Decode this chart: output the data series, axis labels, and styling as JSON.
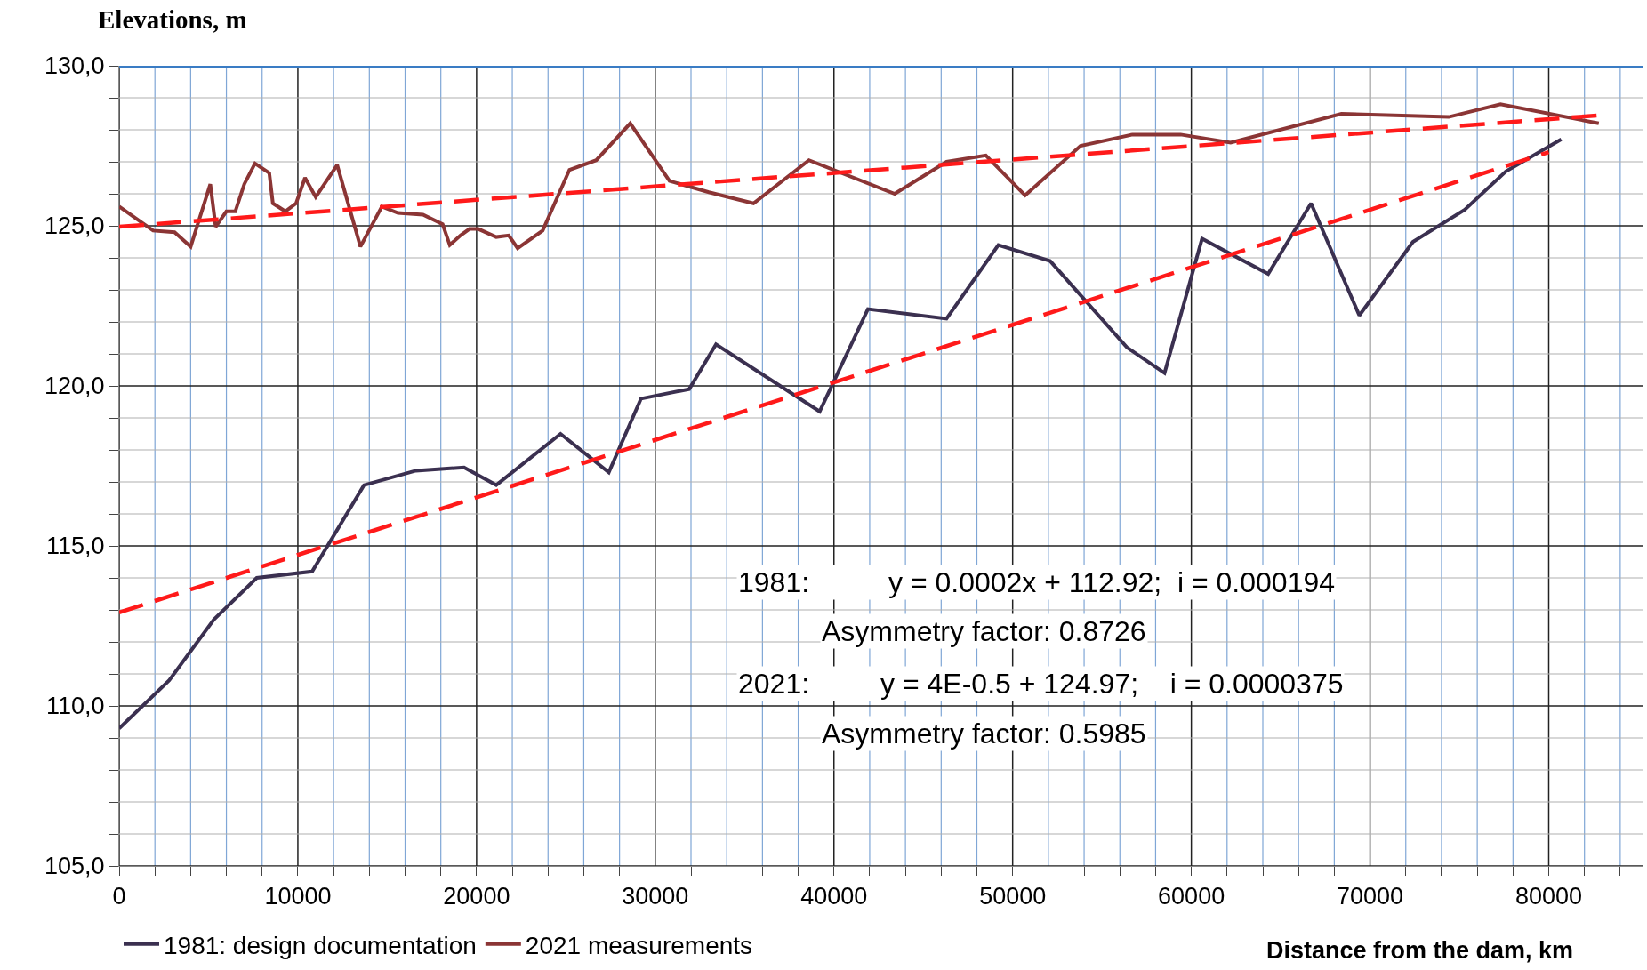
{
  "chart_data": {
    "type": "line",
    "ylabel": "Elevations, m",
    "xlabel": "Distance from the dam, km",
    "xlim": [
      0,
      85300
    ],
    "xticks": [
      0,
      {
        "value": 2000,
        "label": null
      },
      {
        "value": 4000,
        "label": null
      },
      {
        "value": 6000,
        "label": null
      },
      {
        "value": 8000,
        "label": null
      },
      10000,
      {
        "value": 12000,
        "label": null
      },
      {
        "value": 14000,
        "label": null
      },
      {
        "value": 16000,
        "label": null
      },
      {
        "value": 18000,
        "label": null
      },
      20000,
      {
        "value": 22000,
        "label": null
      },
      {
        "value": 24000,
        "label": null
      },
      {
        "value": 26000,
        "label": null
      },
      {
        "value": 28000,
        "label": null
      },
      30000,
      {
        "value": 32000,
        "label": null
      },
      {
        "value": 34000,
        "label": null
      },
      {
        "value": 36000,
        "label": null
      },
      {
        "value": 38000,
        "label": null
      },
      40000,
      {
        "value": 42000,
        "label": null
      },
      {
        "value": 44000,
        "label": null
      },
      {
        "value": 46000,
        "label": null
      },
      {
        "value": 48000,
        "label": null
      },
      50000,
      {
        "value": 52000,
        "label": null
      },
      {
        "value": 54000,
        "label": null
      },
      {
        "value": 56000,
        "label": null
      },
      {
        "value": 58000,
        "label": null
      },
      60000,
      {
        "value": 62000,
        "label": null
      },
      {
        "value": 64000,
        "label": null
      },
      {
        "value": 66000,
        "label": null
      },
      {
        "value": 68000,
        "label": null
      },
      70000,
      {
        "value": 72000,
        "label": null
      },
      {
        "value": 74000,
        "label": null
      },
      {
        "value": 76000,
        "label": null
      },
      {
        "value": 78000,
        "label": null
      },
      80000,
      {
        "value": 82000,
        "label": null
      },
      {
        "value": 84000,
        "label": null
      }
    ],
    "ylim": [
      105,
      130
    ],
    "yticks": [
      {
        "value": 105,
        "label": "105,0"
      },
      {
        "value": 106,
        "label": null
      },
      {
        "value": 107,
        "label": null
      },
      {
        "value": 108,
        "label": null
      },
      {
        "value": 109,
        "label": null
      },
      {
        "value": 110,
        "label": "110,0"
      },
      {
        "value": 111,
        "label": null
      },
      {
        "value": 112,
        "label": null
      },
      {
        "value": 113,
        "label": null
      },
      {
        "value": 114,
        "label": null
      },
      {
        "value": 115,
        "label": "115,0"
      },
      {
        "value": 116,
        "label": null
      },
      {
        "value": 117,
        "label": null
      },
      {
        "value": 118,
        "label": null
      },
      {
        "value": 119,
        "label": null
      },
      {
        "value": 120,
        "label": "120,0"
      },
      {
        "value": 121,
        "label": null
      },
      {
        "value": 122,
        "label": null
      },
      {
        "value": 123,
        "label": null
      },
      {
        "value": 124,
        "label": null
      },
      {
        "value": 125,
        "label": "125,0"
      },
      {
        "value": 126,
        "label": null
      },
      {
        "value": 127,
        "label": null
      },
      {
        "value": 128,
        "label": null
      },
      {
        "value": 129,
        "label": null
      },
      {
        "value": 130,
        "label": "130,0"
      }
    ],
    "grid": true,
    "legend": "bottom left",
    "marker": "none",
    "series": [
      {
        "name": "1981: design documentation",
        "color": "#3b3050",
        "x": [
          0,
          2800,
          5300,
          7700,
          10800,
          13700,
          16600,
          19300,
          21100,
          24700,
          27400,
          29200,
          31900,
          33400,
          39200,
          41900,
          46300,
          49200,
          52100,
          56400,
          58500,
          60600,
          64300,
          66700,
          69400,
          72400,
          75300,
          77600,
          80700
        ],
        "values": [
          109.3,
          110.8,
          112.7,
          114.0,
          114.2,
          116.9,
          117.35,
          117.45,
          116.9,
          118.5,
          117.3,
          119.6,
          119.9,
          121.3,
          119.2,
          122.4,
          122.1,
          124.4,
          123.9,
          121.2,
          120.4,
          124.6,
          123.5,
          125.7,
          122.2,
          124.5,
          125.5,
          126.7,
          127.7
        ]
      },
      {
        "name": "2021 measurements",
        "color": "#8b3535",
        "x": [
          0,
          1900,
          3100,
          4000,
          5100,
          5400,
          6000,
          6500,
          7000,
          7600,
          8400,
          8600,
          9300,
          9900,
          10400,
          11000,
          12200,
          13500,
          14700,
          15600,
          17000,
          18100,
          18500,
          19100,
          19600,
          20100,
          21100,
          21800,
          22300,
          23700,
          25200,
          26700,
          28600,
          30800,
          33000,
          35500,
          38600,
          43400,
          46300,
          48500,
          50700,
          53800,
          56700,
          59400,
          62200,
          68400,
          74400,
          77300,
          82800
        ],
        "values": [
          125.6,
          124.85,
          124.8,
          124.35,
          126.3,
          124.97,
          125.45,
          125.45,
          126.3,
          126.95,
          126.65,
          125.7,
          125.45,
          125.7,
          126.5,
          125.9,
          126.9,
          124.35,
          125.6,
          125.4,
          125.35,
          125.05,
          124.4,
          124.7,
          124.9,
          124.9,
          124.65,
          124.7,
          124.3,
          124.85,
          126.75,
          127.05,
          128.2,
          126.4,
          126.05,
          125.7,
          127.05,
          126.0,
          127.0,
          127.2,
          125.95,
          127.5,
          127.85,
          127.85,
          127.6,
          128.5,
          128.4,
          128.8,
          128.2
        ]
      },
      {
        "type": "line",
        "color": "#ff1a1a",
        "line_style": "dashed",
        "x": [
          0,
          80000
        ],
        "values": [
          112.92,
          127.3
        ]
      },
      {
        "type": "line",
        "color": "#ff1a1a",
        "line_style": "dashed",
        "x": [
          0,
          82800
        ],
        "values": [
          124.97,
          128.45
        ]
      }
    ],
    "ref_lines": [
      {
        "axis": "y",
        "value": 130,
        "color": "#3a7cc4",
        "line_style": "solid"
      }
    ],
    "annotations": [
      "1981:          y = 0.0002x + 112.92;  i = 0.000194",
      "Asymmetry factor: 0.8726",
      "2021:         y = 4E-0.5 + 124.97;    i = 0.0000375",
      "Asymmetry factor: 0.5985"
    ]
  }
}
